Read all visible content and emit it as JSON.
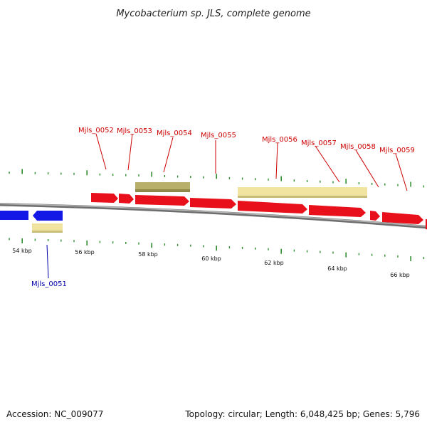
{
  "title": "Mycobacterium sp. JLS, complete genome",
  "footer": {
    "accession": "Accession: NC_009077",
    "summary": "Topology: circular; Length: 6,048,425 bp; Genes: 5,796"
  },
  "colors": {
    "background": "#ffffff",
    "backbone": "#8a8a8a",
    "tick": "#2e8b2e",
    "forward_gene": "#e8101a",
    "reverse_gene": "#1418e6",
    "feature_pale": "#f0e4a0",
    "feature_olive": "#b8b06a",
    "forward_label": "#cc0000",
    "reverse_label": "#0000aa"
  },
  "axis": {
    "unit": "kbp",
    "tick_labels": [
      "54 kbp",
      "56 kbp",
      "58 kbp",
      "60 kbp",
      "62 kbp",
      "64 kbp",
      "66 kbp"
    ]
  },
  "genes": [
    {
      "name": "Mjls_0051",
      "strand": "reverse"
    },
    {
      "name": "Mjls_0052",
      "strand": "forward"
    },
    {
      "name": "Mjls_0053",
      "strand": "forward"
    },
    {
      "name": "Mjls_0054",
      "strand": "forward"
    },
    {
      "name": "Mjls_0055",
      "strand": "forward"
    },
    {
      "name": "Mjls_0056",
      "strand": "forward"
    },
    {
      "name": "Mjls_0057",
      "strand": "forward"
    },
    {
      "name": "Mjls_0058",
      "strand": "forward"
    },
    {
      "name": "Mjls_0059",
      "strand": "forward"
    }
  ]
}
